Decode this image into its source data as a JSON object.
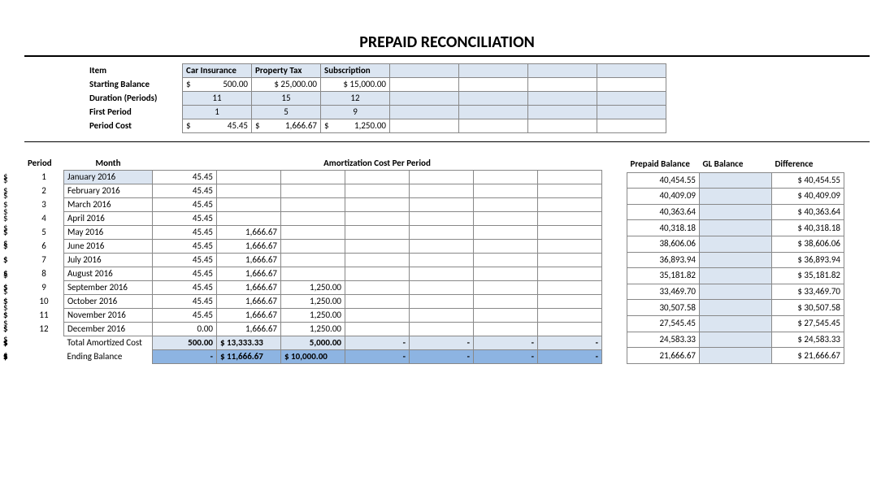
{
  "title": "PREPAID RECONCILIATION",
  "top": {
    "rowLabels": [
      "Item",
      "Starting Balance",
      "Duration (Periods)",
      "First Period",
      "Period Cost"
    ],
    "headers": [
      "Car Insurance",
      "Property Tax",
      "Subscription"
    ],
    "startingBalance": [
      "500.00",
      "$ 25,000.00",
      "$ 15,000.00"
    ],
    "startingBalanceCur": [
      "$",
      "",
      ""
    ],
    "duration": [
      "11",
      "15",
      "12"
    ],
    "firstPeriod": [
      "1",
      "5",
      "9"
    ],
    "periodCost": [
      "45.45",
      "1,666.67",
      "1,250.00"
    ]
  },
  "amort": {
    "headers": {
      "period": "Period",
      "month": "Month",
      "cost": "Amortization Cost Per Period"
    },
    "months": [
      "January 2016",
      "February 2016",
      "March 2016",
      "April 2016",
      "May 2016",
      "June 2016",
      "July 2016",
      "August 2016",
      "September 2016",
      "October 2016",
      "November 2016",
      "December 2016"
    ],
    "periods": [
      "1",
      "2",
      "3",
      "4",
      "5",
      "6",
      "7",
      "8",
      "9",
      "10",
      "11",
      "12"
    ],
    "col1": [
      "45.45",
      "45.45",
      "45.45",
      "45.45",
      "45.45",
      "45.45",
      "45.45",
      "45.45",
      "45.45",
      "45.45",
      "45.45",
      "0.00"
    ],
    "col2": [
      "",
      "",
      "",
      "",
      "1,666.67",
      "1,666.67",
      "1,666.67",
      "1,666.67",
      "1,666.67",
      "1,666.67",
      "1,666.67",
      "1,666.67"
    ],
    "col3": [
      "",
      "",
      "",
      "",
      "",
      "",
      "",
      "",
      "1,250.00",
      "1,250.00",
      "1,250.00",
      "1,250.00"
    ],
    "totalLabel": "Total Amortized Cost",
    "endingLabel": "Ending Balance",
    "totals": [
      "500.00",
      "$ 13,333.33",
      "5,000.00",
      "-",
      "-",
      "-",
      "-"
    ],
    "ending": [
      "-",
      "$ 11,666.67",
      "$ 10,000.00",
      "-",
      "-",
      "-",
      "-"
    ]
  },
  "bal": {
    "headers": [
      "Prepaid Balance",
      "GL Balance",
      "Difference"
    ],
    "prepaid": [
      "40,454.55",
      "40,409.09",
      "40,363.64",
      "40,318.18",
      "38,606.06",
      "36,893.94",
      "35,181.82",
      "33,469.70",
      "30,507.58",
      "27,545.45",
      "24,583.33",
      "21,666.67"
    ],
    "diff": [
      "$ 40,454.55",
      "$ 40,409.09",
      "$ 40,363.64",
      "$ 40,318.18",
      "$ 38,606.06",
      "$ 36,893.94",
      "$ 35,181.82",
      "$ 33,469.70",
      "$ 30,507.58",
      "$ 27,545.45",
      "$ 24,583.33",
      "$ 21,666.67"
    ]
  },
  "colors": {
    "headerFill": "#dbe5f1",
    "darkFill": "#8db4e2",
    "border": "#888888"
  }
}
